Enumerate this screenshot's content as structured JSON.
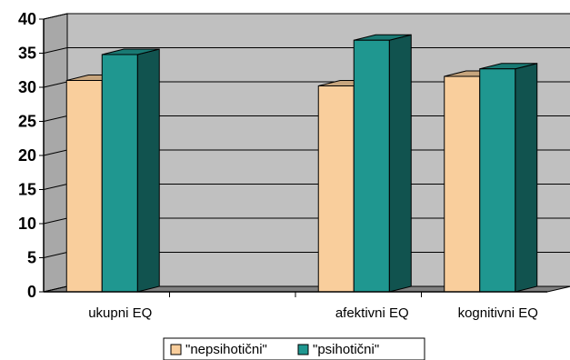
{
  "chart_data": {
    "type": "bar",
    "categories": [
      "ukupni EQ",
      "",
      "afektivni EQ",
      "kognitivni EQ"
    ],
    "series": [
      {
        "name": "\"nepsihotični\"",
        "values": [
          31,
          null,
          30.2,
          31.6
        ],
        "color": "#F9CE9C"
      },
      {
        "name": "\"psihotični\"",
        "values": [
          34.8,
          null,
          36.9,
          32.7
        ],
        "color": "#1F9790"
      }
    ],
    "y_ticks": [
      "0",
      "5",
      "10",
      "15",
      "20",
      "25",
      "30",
      "35",
      "40"
    ],
    "ylim": [
      0,
      40
    ],
    "grid": true,
    "legend_position": "bottom-center",
    "style": "3d-clustered-bar",
    "wall_color": "#C0C0C0",
    "floor_color": "#808080"
  }
}
